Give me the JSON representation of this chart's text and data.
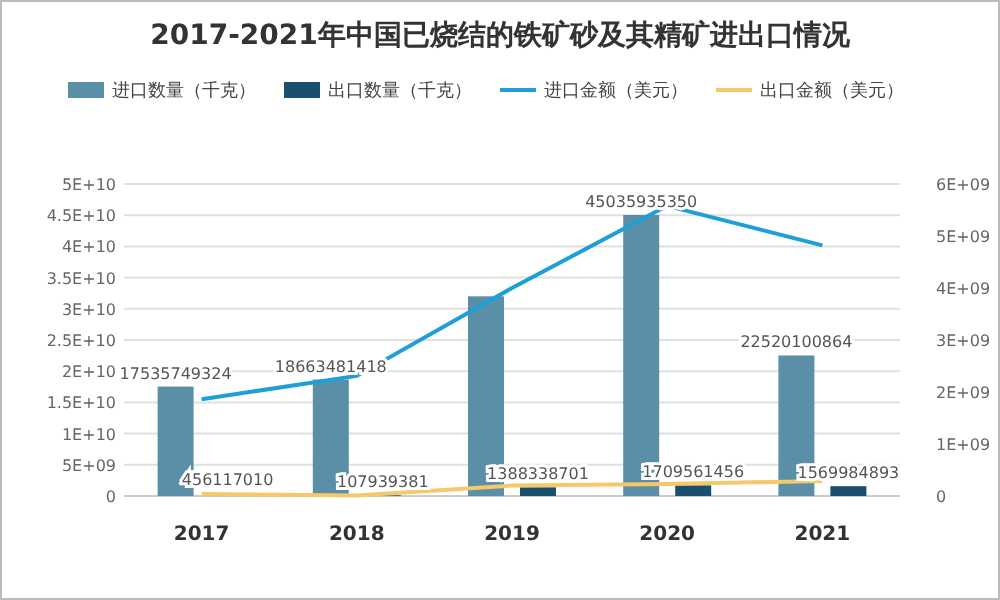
{
  "chart_data": {
    "type": "bar",
    "title": "2017-2021年中国已烧结的铁矿砂及其精矿进出口情况",
    "categories": [
      "2017",
      "2018",
      "2019",
      "2020",
      "2021"
    ],
    "series": [
      {
        "name": "进口数量（千克）",
        "color": "#5b8fa8",
        "values": [
          17535749324,
          18663481418,
          32000000000,
          45035935350,
          22520100864
        ],
        "value_labels": [
          "17535749324",
          "18663481418",
          null,
          "45035935350",
          "22520100864"
        ]
      },
      {
        "name": "出口数量（千克）",
        "color": "#1b4f6e",
        "values": [
          456117010,
          107939381,
          1388338701,
          1709561456,
          1569984893
        ],
        "value_labels": [
          "456117010",
          "107939381",
          "1388338701",
          "1709561456",
          "1569984893"
        ]
      },
      {
        "name": "进口金额（美元）",
        "type": "line",
        "axis": "y2",
        "color": "#1e9fd8",
        "values": [
          1860000000,
          2310000000,
          4000000000,
          5580000000,
          4820000000
        ]
      },
      {
        "name": "出口金额（美元）",
        "type": "line",
        "axis": "y2",
        "color": "#f5c96a",
        "values": [
          40000000,
          10000000,
          200000000,
          230000000,
          290000000
        ]
      }
    ],
    "ylim": [
      0,
      50000000000
    ],
    "yticks": [
      0,
      {
        "value": 5000000000,
        "label": "5E+09"
      },
      {
        "value": 10000000000,
        "label": "1E+10"
      },
      {
        "value": 15000000000,
        "label": "1.5E+10"
      },
      {
        "value": 20000000000,
        "label": "2E+10"
      },
      {
        "value": 25000000000,
        "label": "2.5E+10"
      },
      {
        "value": 30000000000,
        "label": "3E+10"
      },
      {
        "value": 35000000000,
        "label": "3.5E+10"
      },
      {
        "value": 40000000000,
        "label": "4E+10"
      },
      {
        "value": 45000000000,
        "label": "4.5E+10"
      },
      {
        "value": 50000000000,
        "label": "5E+10"
      }
    ],
    "y2lim": [
      0,
      6000000000
    ],
    "y2ticks": [
      0,
      {
        "value": 1000000000,
        "label": "1E+09"
      },
      {
        "value": 2000000000,
        "label": "2E+09"
      },
      {
        "value": 3000000000,
        "label": "3E+09"
      },
      {
        "value": 4000000000,
        "label": "4E+09"
      },
      {
        "value": 5000000000,
        "label": "5E+09"
      },
      {
        "value": 6000000000,
        "label": "6E+09"
      }
    ],
    "grid": "y",
    "legend": "top"
  }
}
